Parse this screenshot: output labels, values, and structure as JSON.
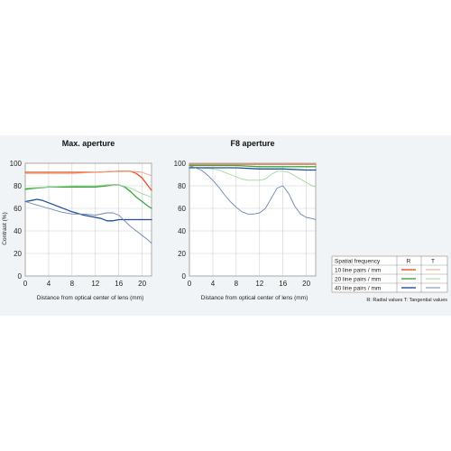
{
  "chart_data": [
    {
      "type": "line",
      "title": "Max. aperture",
      "xlabel": "Distance from optical center of lens (mm)",
      "ylabel": "Contrast (%)",
      "xlim": [
        0,
        21.6
      ],
      "ylim": [
        0,
        100
      ],
      "xticks": [
        "0",
        "4",
        "8",
        "12",
        "16",
        "20"
      ],
      "yticks": [
        "0",
        "20",
        "40",
        "60",
        "80",
        "100"
      ],
      "grid": true,
      "series": [
        {
          "name": "10 line pairs / mm R",
          "color": "#e8511c",
          "style": "solid",
          "x": [
            0,
            4,
            8,
            12,
            16,
            18,
            19,
            20,
            21,
            21.6
          ],
          "y": [
            92,
            92,
            92,
            92,
            93,
            93,
            91,
            87,
            80,
            76
          ]
        },
        {
          "name": "10 line pairs / mm T",
          "color": "#f0a080",
          "style": "solid",
          "x": [
            0,
            4,
            8,
            12,
            16,
            18,
            20,
            21,
            21.6
          ],
          "y": [
            91,
            91,
            91,
            92,
            93,
            93,
            92,
            90,
            89
          ]
        },
        {
          "name": "20 line pairs / mm R",
          "color": "#3aa63a",
          "style": "solid",
          "x": [
            0,
            2,
            4,
            8,
            12,
            14,
            15,
            16,
            17,
            18,
            19,
            20,
            21,
            21.6
          ],
          "y": [
            77,
            78,
            79,
            79,
            79,
            80,
            81,
            81,
            79,
            75,
            70,
            66,
            62,
            60
          ]
        },
        {
          "name": "20 line pairs / mm T",
          "color": "#9fd79f",
          "style": "solid",
          "x": [
            0,
            4,
            8,
            12,
            14,
            16,
            18,
            20,
            21.6
          ],
          "y": [
            78,
            79,
            80,
            80,
            81,
            81,
            78,
            73,
            70
          ]
        },
        {
          "name": "40 line pairs / mm R",
          "color": "#1f4e9c",
          "style": "solid",
          "x": [
            0,
            1,
            2,
            3,
            4,
            6,
            8,
            10,
            12,
            13,
            14,
            15,
            16,
            18,
            20,
            21.6
          ],
          "y": [
            66,
            67,
            68,
            67,
            65,
            61,
            57,
            54,
            52,
            51,
            49,
            49,
            50,
            50,
            50,
            50
          ]
        },
        {
          "name": "40 line pairs / mm T",
          "color": "#6d86b0",
          "style": "solid",
          "x": [
            0,
            2,
            4,
            6,
            8,
            10,
            12,
            14,
            15,
            16,
            17,
            18,
            19,
            20,
            21,
            21.6
          ],
          "y": [
            66,
            63,
            60,
            57,
            55,
            55,
            54,
            56,
            56,
            54,
            49,
            44,
            40,
            36,
            32,
            29
          ]
        }
      ]
    },
    {
      "type": "line",
      "title": "F8 aperture",
      "xlabel": "Distance from optical center of lens (mm)",
      "ylabel": "",
      "xlim": [
        0,
        21.6
      ],
      "ylim": [
        0,
        100
      ],
      "xticks": [
        "0",
        "4",
        "8",
        "12",
        "16",
        "20"
      ],
      "yticks": [
        "0",
        "20",
        "40",
        "60",
        "80",
        "100"
      ],
      "grid": true,
      "series": [
        {
          "name": "10 line pairs / mm R",
          "color": "#e8511c",
          "style": "solid",
          "x": [
            0,
            21.6
          ],
          "y": [
            99,
            99
          ]
        },
        {
          "name": "10 line pairs / mm T",
          "color": "#f0a080",
          "style": "solid",
          "x": [
            0,
            21.6
          ],
          "y": [
            99,
            99
          ]
        },
        {
          "name": "20 line pairs / mm R",
          "color": "#3aa63a",
          "style": "solid",
          "x": [
            0,
            8,
            12,
            16,
            21.6
          ],
          "y": [
            98,
            98,
            97,
            97,
            97
          ]
        },
        {
          "name": "20 line pairs / mm T",
          "color": "#9fd79f",
          "style": "solid",
          "x": [
            0,
            2,
            4,
            5,
            6,
            7,
            8,
            9,
            10,
            11,
            12,
            13,
            14,
            15,
            16,
            17,
            18,
            19,
            20,
            21,
            21.6
          ],
          "y": [
            97,
            96,
            95,
            94,
            92,
            90,
            88,
            86,
            85,
            85,
            85,
            86,
            90,
            93,
            93,
            92,
            89,
            86,
            83,
            80,
            79
          ]
        },
        {
          "name": "40 line pairs / mm R",
          "color": "#1f4e9c",
          "style": "solid",
          "x": [
            0,
            4,
            8,
            12,
            16,
            20,
            21.6
          ],
          "y": [
            96,
            96,
            96,
            95,
            95,
            94,
            94
          ]
        },
        {
          "name": "40 line pairs / mm T",
          "color": "#6d86b0",
          "style": "solid",
          "x": [
            0,
            1,
            2,
            3,
            4,
            5,
            6,
            7,
            8,
            9,
            10,
            11,
            12,
            13,
            14,
            15,
            16,
            17,
            18,
            19,
            20,
            21,
            21.6
          ],
          "y": [
            98,
            96,
            94,
            90,
            85,
            79,
            72,
            66,
            61,
            57,
            55,
            55,
            56,
            60,
            69,
            78,
            80,
            73,
            62,
            55,
            52,
            51,
            50
          ]
        }
      ]
    }
  ],
  "legend": {
    "header": "Spatial frequency",
    "col_r": "R",
    "col_t": "T",
    "rows": [
      {
        "label": "10 line pairs / mm",
        "r_color": "#e8511c",
        "t_color": "#f0a080"
      },
      {
        "label": "20 line pairs / mm",
        "r_color": "#3aa63a",
        "t_color": "#9fd79f"
      },
      {
        "label": "40 line pairs / mm",
        "r_color": "#1f4e9c",
        "t_color": "#6d86b0"
      }
    ],
    "note": "R: Radial values  T: Tangential values"
  }
}
